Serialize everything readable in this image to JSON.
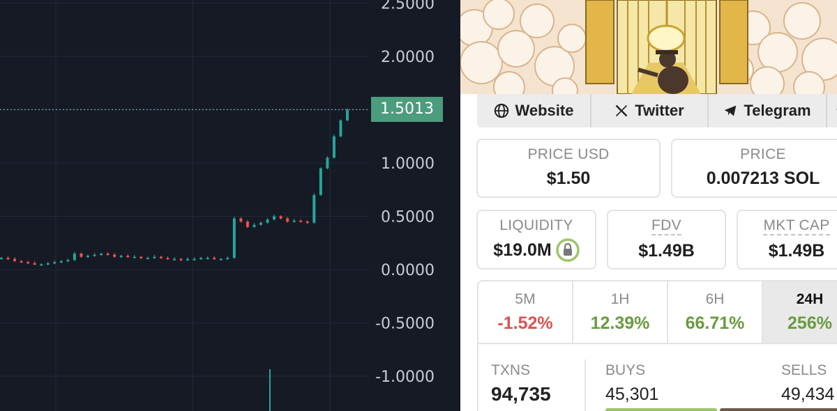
{
  "chart": {
    "axis_labels": [
      "2.5000",
      "2.0000",
      "1.5000",
      "1.0000",
      "0.5000",
      "0.0000",
      "-0.5000",
      "-1.0000"
    ],
    "axis_values": [
      2.5,
      2.0,
      1.5,
      1.0,
      0.5,
      0.0,
      -0.5,
      -1.0
    ],
    "last_price": "1.5013",
    "last_price_value": 1.5013,
    "up_color": "#26a69a",
    "down_color": "#ef5350",
    "tag_color": "#4c9c7e"
  },
  "chart_data": {
    "type": "candlestick",
    "y_axis_ticks": [
      2.5,
      2.0,
      1.5,
      1.0,
      0.5,
      0.0,
      -0.5,
      -1.0
    ],
    "last_price": 1.5013,
    "series_approx_close": [
      0.11,
      0.1,
      0.08,
      0.07,
      0.06,
      0.05,
      0.05,
      0.06,
      0.07,
      0.08,
      0.09,
      0.15,
      0.12,
      0.13,
      0.14,
      0.15,
      0.14,
      0.12,
      0.13,
      0.12,
      0.12,
      0.11,
      0.11,
      0.12,
      0.11,
      0.1,
      0.1,
      0.09,
      0.1,
      0.1,
      0.11,
      0.11,
      0.1,
      0.1,
      0.11,
      0.48,
      0.45,
      0.4,
      0.42,
      0.44,
      0.47,
      0.5,
      0.48,
      0.45,
      0.46,
      0.45,
      0.44,
      0.7,
      0.95,
      1.05,
      1.25,
      1.4,
      1.5
    ]
  },
  "info": {
    "links": {
      "website": "Website",
      "twitter": "Twitter",
      "telegram": "Telegram"
    },
    "price_usd": {
      "label": "PRICE USD",
      "value": "$1.50"
    },
    "price_sol": {
      "label": "PRICE",
      "value": "0.007213 SOL"
    },
    "liquidity": {
      "label": "LIQUIDITY",
      "value": "$19.0M"
    },
    "fdv": {
      "label": "FDV",
      "value": "$1.49B"
    },
    "mkt_cap": {
      "label": "MKT CAP",
      "value": "$1.49B"
    },
    "periods": [
      {
        "label": "5M",
        "value": "-1.52%",
        "color": "#d9534f"
      },
      {
        "label": "1H",
        "value": "12.39%",
        "color": "#6a9a3f"
      },
      {
        "label": "6H",
        "value": "66.71%",
        "color": "#6a9a3f"
      },
      {
        "label": "24H",
        "value": "256%",
        "color": "#6a9a3f"
      }
    ],
    "txns": {
      "label": "TXNS",
      "value": "94,735"
    },
    "buys": {
      "label": "BUYS",
      "value": "45,301"
    },
    "sells": {
      "label": "SELLS",
      "value": "49,434"
    },
    "buy_color": "#9ec46b",
    "sell_color": "#6b5a4b"
  }
}
